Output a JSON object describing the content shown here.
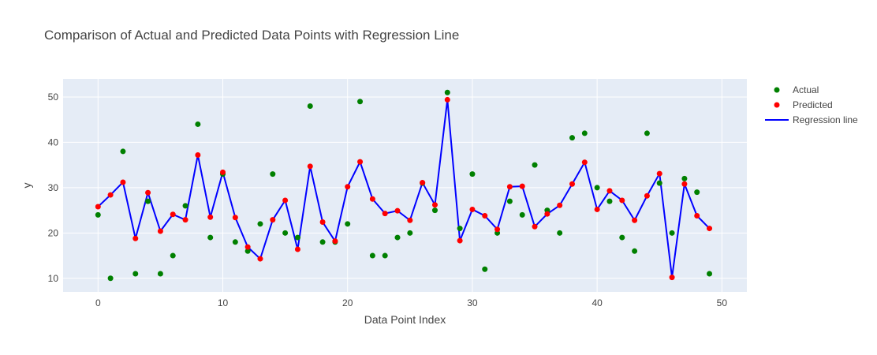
{
  "chart_data": {
    "type": "scatter",
    "title": "Comparison of Actual and Predicted Data Points with Regression Line",
    "xlabel": "Data Point Index",
    "ylabel": "y",
    "xlim": [
      -2.8,
      52
    ],
    "ylim": [
      7,
      54
    ],
    "xticks": [
      0,
      10,
      20,
      30,
      40,
      50
    ],
    "yticks": [
      10,
      20,
      30,
      40,
      50
    ],
    "grid": true,
    "legend_position": "top-right",
    "colors": {
      "plot_bg": "#e5ecf6",
      "grid": "#ffffff",
      "actual": "#008000",
      "predicted": "#ff0000",
      "regression": "#0000ff"
    },
    "x": [
      0,
      1,
      2,
      3,
      4,
      5,
      6,
      7,
      8,
      9,
      10,
      11,
      12,
      13,
      14,
      15,
      16,
      17,
      18,
      19,
      20,
      21,
      22,
      23,
      24,
      25,
      26,
      27,
      28,
      29,
      30,
      31,
      32,
      33,
      34,
      35,
      36,
      37,
      38,
      39,
      40,
      41,
      42,
      43,
      44,
      45,
      46,
      47,
      48,
      49
    ],
    "series": [
      {
        "name": "Actual",
        "mode": "markers",
        "values": [
          24,
          10,
          38,
          11,
          27,
          11,
          15,
          26,
          44,
          19,
          33,
          18,
          16,
          22,
          33,
          20,
          19,
          48,
          18,
          18,
          22,
          49,
          15,
          15,
          19,
          20,
          31,
          25,
          51,
          21,
          33,
          12,
          20,
          27,
          24,
          35,
          25,
          20,
          41,
          42,
          30,
          27,
          19,
          16,
          42,
          31,
          20,
          32,
          29,
          11
        ]
      },
      {
        "name": "Predicted",
        "mode": "markers",
        "values": [
          25.8,
          28.4,
          31.2,
          18.8,
          28.9,
          20.4,
          24.1,
          22.9,
          37.2,
          23.5,
          33.4,
          23.4,
          16.9,
          14.3,
          22.9,
          27.2,
          16.4,
          34.7,
          22.4,
          18.2,
          30.2,
          35.7,
          27.5,
          24.3,
          24.9,
          22.8,
          31.1,
          26.2,
          49.4,
          18.3,
          25.2,
          23.8,
          20.8,
          30.2,
          30.3,
          21.4,
          24.2,
          26.1,
          30.8,
          35.6,
          25.2,
          29.3,
          27.2,
          22.8,
          28.2,
          33.1,
          10.2,
          30.8,
          23.8,
          21.0
        ]
      },
      {
        "name": "Regression line",
        "mode": "lines",
        "values": [
          25.8,
          28.4,
          31.2,
          18.8,
          28.9,
          20.4,
          24.1,
          22.9,
          37.2,
          23.5,
          33.4,
          23.4,
          16.9,
          14.3,
          22.9,
          27.2,
          16.4,
          34.7,
          22.4,
          18.2,
          30.2,
          35.7,
          27.5,
          24.3,
          24.9,
          22.8,
          31.1,
          26.2,
          49.4,
          18.3,
          25.2,
          23.8,
          20.8,
          30.2,
          30.3,
          21.4,
          24.2,
          26.1,
          30.8,
          35.6,
          25.2,
          29.3,
          27.2,
          22.8,
          28.2,
          33.1,
          10.2,
          30.8,
          23.8,
          21.0
        ]
      }
    ]
  }
}
